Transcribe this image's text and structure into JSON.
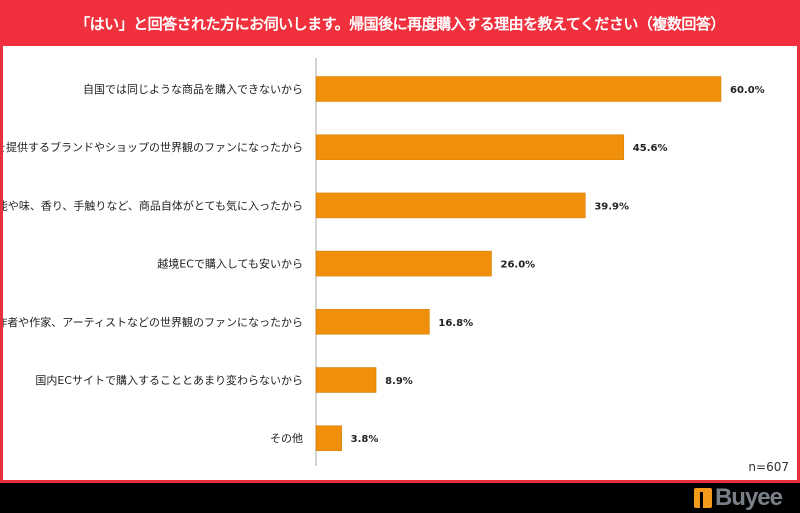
{
  "chart_data": {
    "type": "bar",
    "orientation": "horizontal",
    "title": "「はい」と回答された方にお伺いします。帰国後に再度購入する理由を教えてください（複数回答）",
    "categories": [
      "自国では同じような商品を購入できないから",
      "商品を提供するブランドやショップの世界観のファンになったから",
      "効能や味、香り、手触りなど、商品自体がとても気に入ったから",
      "越境ECで購入しても安いから",
      "作者や作家、アーティストなどの世界観のファンになったから",
      "国内ECサイトで購入することとあまり変わらないから",
      "その他"
    ],
    "values": [
      60.0,
      45.6,
      39.9,
      26.0,
      16.8,
      8.9,
      3.8
    ],
    "value_labels": [
      "60.0%",
      "45.6%",
      "39.9%",
      "26.0%",
      "16.8%",
      "8.9%",
      "3.8%"
    ],
    "xlim": [
      0,
      70
    ],
    "bar_color": "#f0900a",
    "grid": false,
    "note": "n=607"
  },
  "header_color": "#f0313d",
  "logo_text": "Buyee"
}
